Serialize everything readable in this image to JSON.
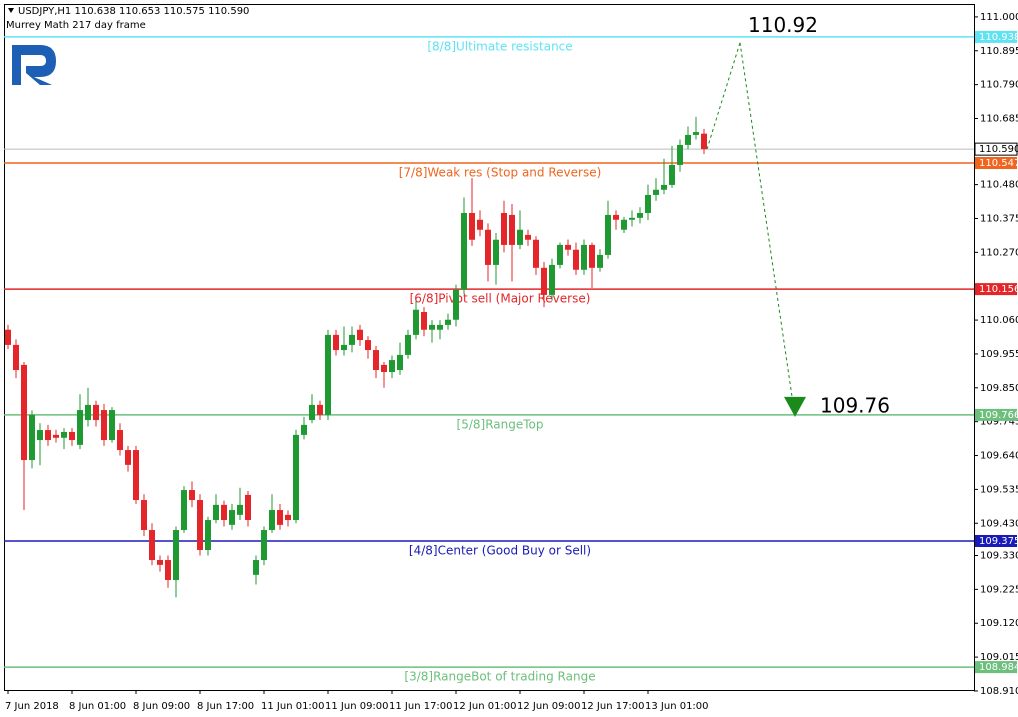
{
  "chart_data": {
    "type": "candlestick",
    "title": "USDJPY,H1  110.638 110.653 110.575 110.590",
    "subtitle": "Murrey Math 217 day frame",
    "categories": [
      "7 Jun 2018",
      null,
      null,
      null,
      null,
      null,
      null,
      null,
      "8 Jun 01:00",
      null,
      null,
      null,
      null,
      null,
      null,
      null,
      "8 Jun 09:00",
      null,
      null,
      null,
      null,
      null,
      null,
      null,
      "8 Jun 17:00",
      null,
      null,
      null,
      null,
      null,
      null,
      null,
      "11 Jun 01:00",
      null,
      null,
      null,
      null,
      null,
      null,
      null,
      "11 Jun 09:00",
      null,
      null,
      null,
      null,
      null,
      null,
      null,
      "11 Jun 17:00",
      null,
      null,
      null,
      null,
      null,
      null,
      null,
      "12 Jun 01:00",
      null,
      null,
      null,
      null,
      null,
      null,
      null,
      "12 Jun 09:00",
      null,
      null,
      null,
      null,
      null,
      null,
      null,
      "12 Jun 17:00",
      null,
      null,
      null,
      null,
      null,
      null,
      null,
      "13 Jun 01:00",
      null,
      null,
      null,
      null,
      null,
      null,
      null
    ],
    "open": [
      110.03,
      109.983,
      109.921,
      109.626,
      109.688,
      109.719,
      109.704,
      109.695,
      109.713,
      109.673,
      109.75,
      109.797,
      109.781,
      109.688,
      109.719,
      109.657,
      109.657,
      109.502,
      109.409,
      109.316,
      109.316,
      109.254,
      109.409,
      109.533,
      109.502,
      109.347,
      109.44,
      109.487,
      109.425,
      109.456,
      109.518,
      109.27,
      109.316,
      109.409,
      109.471,
      109.456,
      109.44,
      109.704,
      109.75,
      109.797,
      109.766,
      110.014,
      109.967,
      109.983,
      110.03,
      109.998,
      109.967,
      109.921,
      109.899,
      109.905,
      109.952,
      110.014,
      110.085,
      110.03,
      110.03,
      110.045,
      110.061,
      110.154,
      110.392,
      110.371,
      110.34,
      110.231,
      110.392,
      110.386,
      110.293,
      110.324,
      110.309,
      110.222,
      110.138,
      110.231,
      110.293,
      110.278,
      110.216,
      110.293,
      110.222,
      110.262,
      110.386,
      110.34,
      110.371,
      110.377,
      110.392,
      110.448,
      110.464,
      110.479,
      110.541,
      110.603,
      110.634,
      110.638
    ],
    "high": [
      110.045,
      110.0,
      109.93,
      109.78,
      109.74,
      109.735,
      109.72,
      109.725,
      109.725,
      109.83,
      109.85,
      109.81,
      109.8,
      109.79,
      109.74,
      109.67,
      109.67,
      109.52,
      109.43,
      109.33,
      109.33,
      109.42,
      109.545,
      109.56,
      109.52,
      109.45,
      109.52,
      109.5,
      109.49,
      109.54,
      109.53,
      109.33,
      109.42,
      109.52,
      109.49,
      109.47,
      109.72,
      109.76,
      109.83,
      109.81,
      110.03,
      110.03,
      110.04,
      110.04,
      110.045,
      110.01,
      109.98,
      109.93,
      109.95,
      109.99,
      110.03,
      110.12,
      110.1,
      110.06,
      110.06,
      110.08,
      110.17,
      110.44,
      110.5,
      110.4,
      110.36,
      110.33,
      110.43,
      110.42,
      110.4,
      110.34,
      110.32,
      110.24,
      110.25,
      110.3,
      110.31,
      110.3,
      110.31,
      110.3,
      110.28,
      110.43,
      110.4,
      110.38,
      110.4,
      110.41,
      110.48,
      110.5,
      110.56,
      110.6,
      110.62,
      110.66,
      110.69,
      110.653
    ],
    "low": [
      109.97,
      109.88,
      109.471,
      109.6,
      109.61,
      109.67,
      109.68,
      109.66,
      109.67,
      109.66,
      109.73,
      109.73,
      109.67,
      109.68,
      109.64,
      109.59,
      109.49,
      109.39,
      109.3,
      109.28,
      109.23,
      109.2,
      109.4,
      109.48,
      109.33,
      109.33,
      109.43,
      109.42,
      109.41,
      109.44,
      109.42,
      109.24,
      109.3,
      109.4,
      109.41,
      109.42,
      109.43,
      109.69,
      109.74,
      109.75,
      109.75,
      109.95,
      109.95,
      109.96,
      109.98,
      109.94,
      109.88,
      109.85,
      109.88,
      109.89,
      109.94,
      110.0,
      110.01,
      109.99,
      110.0,
      110.03,
      110.04,
      110.14,
      110.29,
      110.32,
      110.18,
      110.17,
      110.27,
      110.18,
      110.28,
      110.29,
      110.2,
      110.1,
      110.12,
      110.22,
      110.26,
      110.2,
      110.2,
      110.16,
      110.21,
      110.25,
      110.34,
      110.33,
      110.35,
      110.36,
      110.37,
      110.43,
      110.45,
      110.47,
      110.52,
      110.59,
      110.62,
      110.575
    ],
    "close": [
      109.983,
      109.905,
      109.626,
      109.766,
      109.719,
      109.688,
      109.695,
      109.713,
      109.688,
      109.781,
      109.797,
      109.75,
      109.688,
      109.781,
      109.657,
      109.611,
      109.502,
      109.409,
      109.316,
      109.301,
      109.254,
      109.409,
      109.533,
      109.502,
      109.347,
      109.44,
      109.487,
      109.44,
      109.471,
      109.487,
      109.44,
      109.316,
      109.409,
      109.471,
      109.425,
      109.44,
      109.704,
      109.735,
      109.797,
      109.766,
      110.014,
      109.967,
      109.983,
      110.014,
      109.998,
      109.967,
      109.905,
      109.899,
      109.936,
      109.952,
      110.014,
      110.092,
      110.03,
      110.045,
      110.045,
      110.061,
      110.154,
      110.392,
      110.309,
      110.34,
      110.231,
      110.309,
      110.293,
      110.293,
      110.34,
      110.309,
      110.222,
      110.138,
      110.231,
      110.293,
      110.278,
      110.216,
      110.293,
      110.222,
      110.262,
      110.386,
      110.371,
      110.371,
      110.377,
      110.392,
      110.448,
      110.464,
      110.479,
      110.541,
      110.603,
      110.634,
      110.643,
      110.59
    ],
    "up_color": "#1f9a33",
    "down_color": "#e4262a",
    "ylim": [
      108.913,
      111.04
    ],
    "yticks": [
      {
        "value": 111,
        "label": "111.000"
      },
      110.895,
      {
        "value": 110.79,
        "label": "110.790"
      },
      110.685,
      {
        "value": 110.48,
        "label": "110.480"
      },
      110.375,
      {
        "value": 110.27,
        "label": "110.270"
      },
      {
        "value": 110.06,
        "label": "110.060"
      },
      109.955,
      {
        "value": 109.85,
        "label": "109.850"
      },
      109.745,
      {
        "value": 109.64,
        "label": "109.640"
      },
      109.535,
      {
        "value": 109.43,
        "label": "109.430"
      },
      {
        "value": 109.33,
        "label": "109.330"
      },
      109.225,
      {
        "value": 109.12,
        "label": "109.120"
      },
      109.015,
      {
        "value": 108.91,
        "label": "108.910"
      }
    ],
    "levels": [
      {
        "name": "[8/8]Ultimate resistance",
        "value": 110.938,
        "color": "#5fe3f2"
      },
      {
        "name": "[7/8]Weak res (Stop and Reverse)",
        "value": 110.547,
        "color": "#f0641e"
      },
      {
        "name": "[6/8]Pivot sell (Major Reverse)",
        "value": 110.156,
        "color": "#e4262a"
      },
      {
        "name": "[5/8]RangeTop",
        "value": 109.766,
        "color": "#6cbf7c"
      },
      {
        "name": "[4/8]Center (Good Buy or Sell)",
        "value": 109.375,
        "color": "#1a1ab8"
      },
      {
        "name": "[3/8]RangeBot of trading Range",
        "value": 108.984,
        "color": "#6cbf7c"
      }
    ],
    "current_price": {
      "value": 110.59,
      "label": "110.590"
    },
    "forecast": {
      "values": [
        110.92,
        109.76
      ],
      "color": "#1a8a1a"
    }
  }
}
